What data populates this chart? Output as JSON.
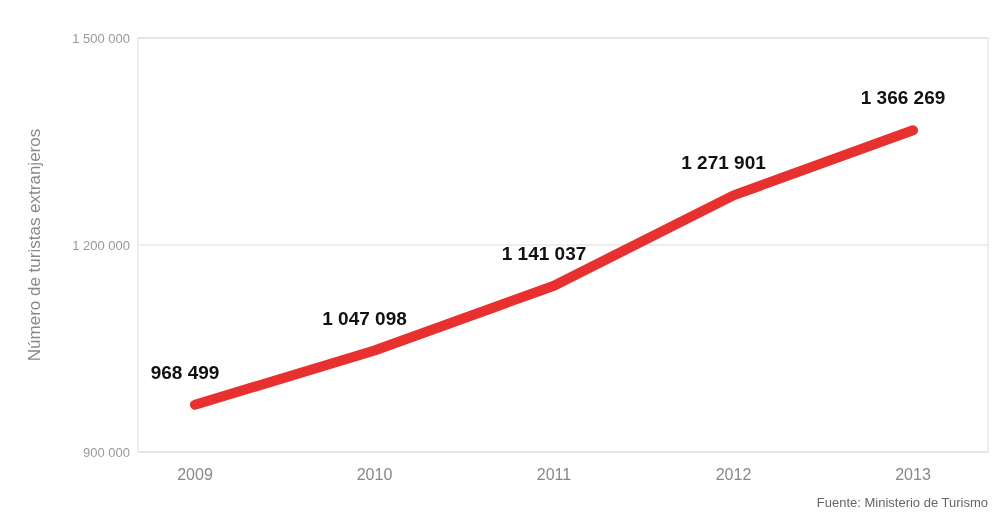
{
  "chart_data": {
    "type": "line",
    "ylabel": "Número de turistas extranjeros",
    "categories": [
      "2009",
      "2010",
      "2011",
      "2012",
      "2013"
    ],
    "series": [
      {
        "color": "#e8312f",
        "values": [
          968499,
          1047098,
          1141037,
          1271901,
          1366269
        ],
        "value_labels": [
          "968 499",
          "1 047 098",
          "1 141 037",
          "1 271 901",
          "1 366 269"
        ]
      }
    ],
    "ylim": [
      900000,
      1500000
    ],
    "yticks": [
      {
        "value": 900000,
        "label": "900 000"
      },
      {
        "value": 1200000,
        "label": "1 200 000"
      },
      {
        "value": 1500000,
        "label": "1 500 000"
      }
    ],
    "grid": "y",
    "marker": "none",
    "line_style": "solid",
    "annotations": [
      "Fuente: Ministerio de Turismo"
    ]
  }
}
